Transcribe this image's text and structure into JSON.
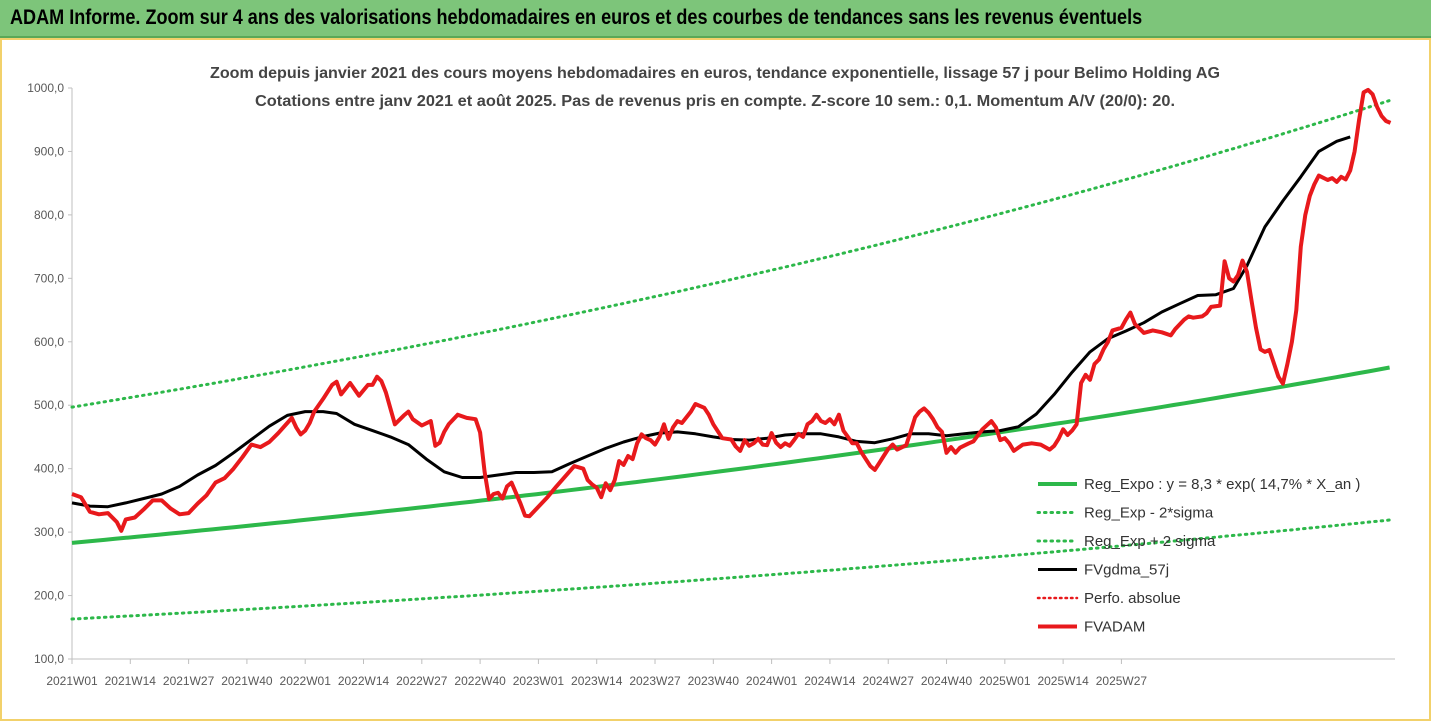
{
  "banner": {
    "title": "ADAM Informe. Zoom sur 4 ans des valorisations hebdomadaires en euros et des courbes de tendances sans les revenus éventuels"
  },
  "colors": {
    "banner_bg": "#7dc57a",
    "trend": "#2db84a",
    "ma": "#000000",
    "price": "#e8191c",
    "perfo": "#e8191c",
    "frame": "#f2d16b"
  },
  "chart_data": {
    "type": "line",
    "title": "Zoom depuis janvier 2021 des cours moyens hebdomadaires en euros, tendance exponentielle, lissage 57 j pour Belimo Holding AG",
    "subtitle": "Cotations entre janv 2021 et août 2025. Pas de revenus pris en compte. Z-score 10 sem.: 0,1. Momentum A/V (20/0): 20.",
    "xlabel": "",
    "ylabel": "",
    "ylim": [
      100,
      1000
    ],
    "y_ticks": [
      "100,0",
      "200,0",
      "300,0",
      "400,0",
      "500,0",
      "600,0",
      "700,0",
      "800,0",
      "900,0",
      "1000,0"
    ],
    "x_ticks": [
      "2021W01",
      "2021W14",
      "2021W27",
      "2021W40",
      "2022W01",
      "2022W14",
      "2022W27",
      "2022W40",
      "2023W01",
      "2023W14",
      "2023W27",
      "2023W40",
      "2024W01",
      "2024W14",
      "2024W27",
      "2024W40",
      "2025W01",
      "2025W14",
      "2025W27"
    ],
    "x_range_weeks": [
      0,
      245
    ],
    "grid": false,
    "legend_position": "bottom-right",
    "series": [
      {
        "name": "Reg_Expo : y = 8,3 * exp( 14,7% * X_an )",
        "style": "solid",
        "points": [
          [
            0,
            283
          ],
          [
            245,
            561
          ]
        ]
      },
      {
        "name": "Reg_Exp - 2*sigma",
        "style": "dotted",
        "points": [
          [
            0,
            163
          ],
          [
            245,
            320
          ]
        ]
      },
      {
        "name": "Reg_Exp + 2 sigma",
        "style": "dotted",
        "points": [
          [
            0,
            497
          ],
          [
            245,
            983
          ]
        ]
      },
      {
        "name": "FVgdma_57j",
        "style": "solid",
        "points": [
          [
            0,
            346
          ],
          [
            4,
            341
          ],
          [
            8,
            340
          ],
          [
            12,
            346
          ],
          [
            16,
            353
          ],
          [
            20,
            360
          ],
          [
            24,
            372
          ],
          [
            28,
            390
          ],
          [
            32,
            405
          ],
          [
            36,
            425
          ],
          [
            40,
            446
          ],
          [
            44,
            467
          ],
          [
            48,
            484
          ],
          [
            52,
            490
          ],
          [
            56,
            490
          ],
          [
            59,
            487
          ],
          [
            63,
            470
          ],
          [
            67,
            460
          ],
          [
            71,
            450
          ],
          [
            75,
            438
          ],
          [
            79,
            415
          ],
          [
            83,
            395
          ],
          [
            87,
            386
          ],
          [
            91,
            386
          ],
          [
            95,
            390
          ],
          [
            99,
            394
          ],
          [
            103,
            394
          ],
          [
            107,
            395
          ],
          [
            111,
            408
          ],
          [
            115,
            420
          ],
          [
            119,
            432
          ],
          [
            123,
            442
          ],
          [
            127,
            450
          ],
          [
            131,
            456
          ],
          [
            135,
            458
          ],
          [
            139,
            455
          ],
          [
            143,
            450
          ],
          [
            147,
            446
          ],
          [
            151,
            445
          ],
          [
            155,
            448
          ],
          [
            159,
            453
          ],
          [
            163,
            455
          ],
          [
            167,
            455
          ],
          [
            171,
            450
          ],
          [
            175,
            443
          ],
          [
            179,
            441
          ],
          [
            183,
            447
          ],
          [
            187,
            455
          ],
          [
            191,
            455
          ],
          [
            195,
            452
          ],
          [
            199,
            455
          ],
          [
            203,
            458
          ],
          [
            207,
            460
          ],
          [
            211,
            466
          ],
          [
            215,
            486
          ],
          [
            219,
            517
          ],
          [
            223,
            552
          ],
          [
            227,
            584
          ],
          [
            231,
            605
          ],
          [
            235,
            617
          ],
          [
            239,
            630
          ],
          [
            243,
            647
          ],
          [
            247,
            660
          ],
          [
            251,
            673
          ],
          [
            255,
            674
          ],
          [
            259,
            684
          ],
          [
            262,
            720
          ],
          [
            266,
            781
          ],
          [
            270,
            822
          ],
          [
            274,
            860
          ],
          [
            278,
            900
          ],
          [
            282,
            916
          ],
          [
            285,
            923
          ]
        ]
      },
      {
        "name": "Perfo. absolue",
        "style": "dotted",
        "points": []
      },
      {
        "name": "FVADAM",
        "style": "solid",
        "points": [
          [
            0,
            360
          ],
          [
            2,
            355
          ],
          [
            4,
            332
          ],
          [
            6,
            328
          ],
          [
            8,
            330
          ],
          [
            10,
            316
          ],
          [
            11,
            302
          ],
          [
            12,
            320
          ],
          [
            14,
            323
          ],
          [
            16,
            336
          ],
          [
            18,
            350
          ],
          [
            20,
            350
          ],
          [
            22,
            337
          ],
          [
            24,
            328
          ],
          [
            26,
            330
          ],
          [
            28,
            345
          ],
          [
            30,
            358
          ],
          [
            32,
            378
          ],
          [
            34,
            385
          ],
          [
            36,
            400
          ],
          [
            38,
            418
          ],
          [
            40,
            438
          ],
          [
            42,
            434
          ],
          [
            44,
            442
          ],
          [
            46,
            456
          ],
          [
            48,
            472
          ],
          [
            49,
            480
          ],
          [
            50,
            465
          ],
          [
            51,
            454
          ],
          [
            52,
            460
          ],
          [
            53,
            472
          ],
          [
            54,
            490
          ],
          [
            56,
            510
          ],
          [
            58,
            532
          ],
          [
            59,
            537
          ],
          [
            60,
            517
          ],
          [
            62,
            535
          ],
          [
            64,
            515
          ],
          [
            66,
            532
          ],
          [
            67,
            532
          ],
          [
            68,
            545
          ],
          [
            69,
            538
          ],
          [
            70,
            520
          ],
          [
            71,
            495
          ],
          [
            72,
            470
          ],
          [
            74,
            484
          ],
          [
            75,
            490
          ],
          [
            76,
            478
          ],
          [
            78,
            468
          ],
          [
            80,
            475
          ],
          [
            81,
            436
          ],
          [
            82,
            441
          ],
          [
            83,
            458
          ],
          [
            84,
            470
          ],
          [
            86,
            485
          ],
          [
            88,
            480
          ],
          [
            90,
            478
          ],
          [
            91,
            457
          ],
          [
            92,
            395
          ],
          [
            93,
            352
          ],
          [
            94,
            360
          ],
          [
            95,
            362
          ],
          [
            96,
            353
          ],
          [
            97,
            372
          ],
          [
            98,
            378
          ],
          [
            100,
            345
          ],
          [
            101,
            326
          ],
          [
            102,
            325
          ],
          [
            104,
            340
          ],
          [
            106,
            355
          ],
          [
            108,
            372
          ],
          [
            110,
            388
          ],
          [
            112,
            404
          ],
          [
            114,
            400
          ],
          [
            115,
            382
          ],
          [
            116,
            375
          ],
          [
            117,
            370
          ],
          [
            118,
            355
          ],
          [
            119,
            377
          ],
          [
            120,
            366
          ],
          [
            121,
            382
          ],
          [
            122,
            412
          ],
          [
            123,
            406
          ],
          [
            124,
            420
          ],
          [
            125,
            415
          ],
          [
            126,
            440
          ],
          [
            127,
            454
          ],
          [
            128,
            448
          ],
          [
            129,
            445
          ],
          [
            130,
            438
          ],
          [
            131,
            450
          ],
          [
            132,
            470
          ],
          [
            133,
            447
          ],
          [
            134,
            465
          ],
          [
            135,
            475
          ],
          [
            136,
            472
          ],
          [
            138,
            490
          ],
          [
            139,
            502
          ],
          [
            141,
            496
          ],
          [
            142,
            485
          ],
          [
            143,
            470
          ],
          [
            145,
            448
          ],
          [
            147,
            446
          ],
          [
            148,
            435
          ],
          [
            149,
            428
          ],
          [
            150,
            445
          ],
          [
            151,
            436
          ],
          [
            152,
            440
          ],
          [
            153,
            447
          ],
          [
            154,
            438
          ],
          [
            155,
            437
          ],
          [
            156,
            456
          ],
          [
            157,
            441
          ],
          [
            158,
            434
          ],
          [
            159,
            440
          ],
          [
            160,
            436
          ],
          [
            161,
            445
          ],
          [
            162,
            455
          ],
          [
            163,
            450
          ],
          [
            164,
            470
          ],
          [
            165,
            475
          ],
          [
            166,
            485
          ],
          [
            167,
            475
          ],
          [
            168,
            472
          ],
          [
            169,
            478
          ],
          [
            170,
            470
          ],
          [
            171,
            485
          ],
          [
            172,
            460
          ],
          [
            173,
            450
          ],
          [
            174,
            440
          ],
          [
            175,
            440
          ],
          [
            176,
            426
          ],
          [
            178,
            404
          ],
          [
            179,
            398
          ],
          [
            180,
            409
          ],
          [
            181,
            420
          ],
          [
            182,
            431
          ],
          [
            183,
            438
          ],
          [
            184,
            430
          ],
          [
            186,
            437
          ],
          [
            187,
            458
          ],
          [
            188,
            481
          ],
          [
            189,
            490
          ],
          [
            190,
            495
          ],
          [
            191,
            488
          ],
          [
            192,
            478
          ],
          [
            193,
            465
          ],
          [
            194,
            458
          ],
          [
            195,
            425
          ],
          [
            196,
            434
          ],
          [
            197,
            425
          ],
          [
            198,
            433
          ],
          [
            200,
            440
          ],
          [
            201,
            443
          ],
          [
            203,
            462
          ],
          [
            205,
            475
          ],
          [
            206,
            465
          ],
          [
            207,
            445
          ],
          [
            208,
            448
          ],
          [
            209,
            440
          ],
          [
            210,
            428
          ],
          [
            212,
            438
          ],
          [
            214,
            440
          ],
          [
            216,
            438
          ],
          [
            218,
            430
          ],
          [
            219,
            436
          ],
          [
            220,
            447
          ],
          [
            221,
            462
          ],
          [
            222,
            453
          ],
          [
            223,
            460
          ],
          [
            224,
            470
          ],
          [
            225,
            535
          ],
          [
            226,
            548
          ],
          [
            227,
            540
          ],
          [
            228,
            565
          ],
          [
            229,
            572
          ],
          [
            230,
            588
          ],
          [
            231,
            600
          ],
          [
            232,
            618
          ],
          [
            234,
            622
          ],
          [
            235,
            635
          ],
          [
            236,
            646
          ],
          [
            237,
            628
          ],
          [
            239,
            614
          ],
          [
            241,
            618
          ],
          [
            243,
            615
          ],
          [
            245,
            610
          ],
          [
            246,
            620
          ],
          [
            248,
            635
          ],
          [
            249,
            640
          ],
          [
            250,
            638
          ],
          [
            252,
            640
          ],
          [
            253,
            645
          ],
          [
            254,
            655
          ],
          [
            256,
            657
          ],
          [
            257,
            727
          ],
          [
            258,
            700
          ],
          [
            259,
            695
          ],
          [
            260,
            705
          ],
          [
            261,
            728
          ],
          [
            262,
            710
          ],
          [
            263,
            665
          ],
          [
            264,
            622
          ],
          [
            265,
            588
          ],
          [
            266,
            584
          ],
          [
            267,
            587
          ],
          [
            269,
            545
          ],
          [
            270,
            534
          ],
          [
            271,
            565
          ],
          [
            272,
            600
          ],
          [
            273,
            650
          ],
          [
            274,
            750
          ],
          [
            275,
            800
          ],
          [
            276,
            830
          ],
          [
            277,
            848
          ],
          [
            278,
            862
          ],
          [
            280,
            855
          ],
          [
            281,
            858
          ],
          [
            282,
            852
          ],
          [
            283,
            860
          ],
          [
            284,
            856
          ],
          [
            285,
            870
          ],
          [
            286,
            900
          ],
          [
            287,
            950
          ],
          [
            288,
            993
          ],
          [
            289,
            997
          ],
          [
            290,
            990
          ],
          [
            291,
            970
          ],
          [
            292,
            956
          ],
          [
            293,
            948
          ],
          [
            294,
            945
          ]
        ]
      }
    ]
  }
}
